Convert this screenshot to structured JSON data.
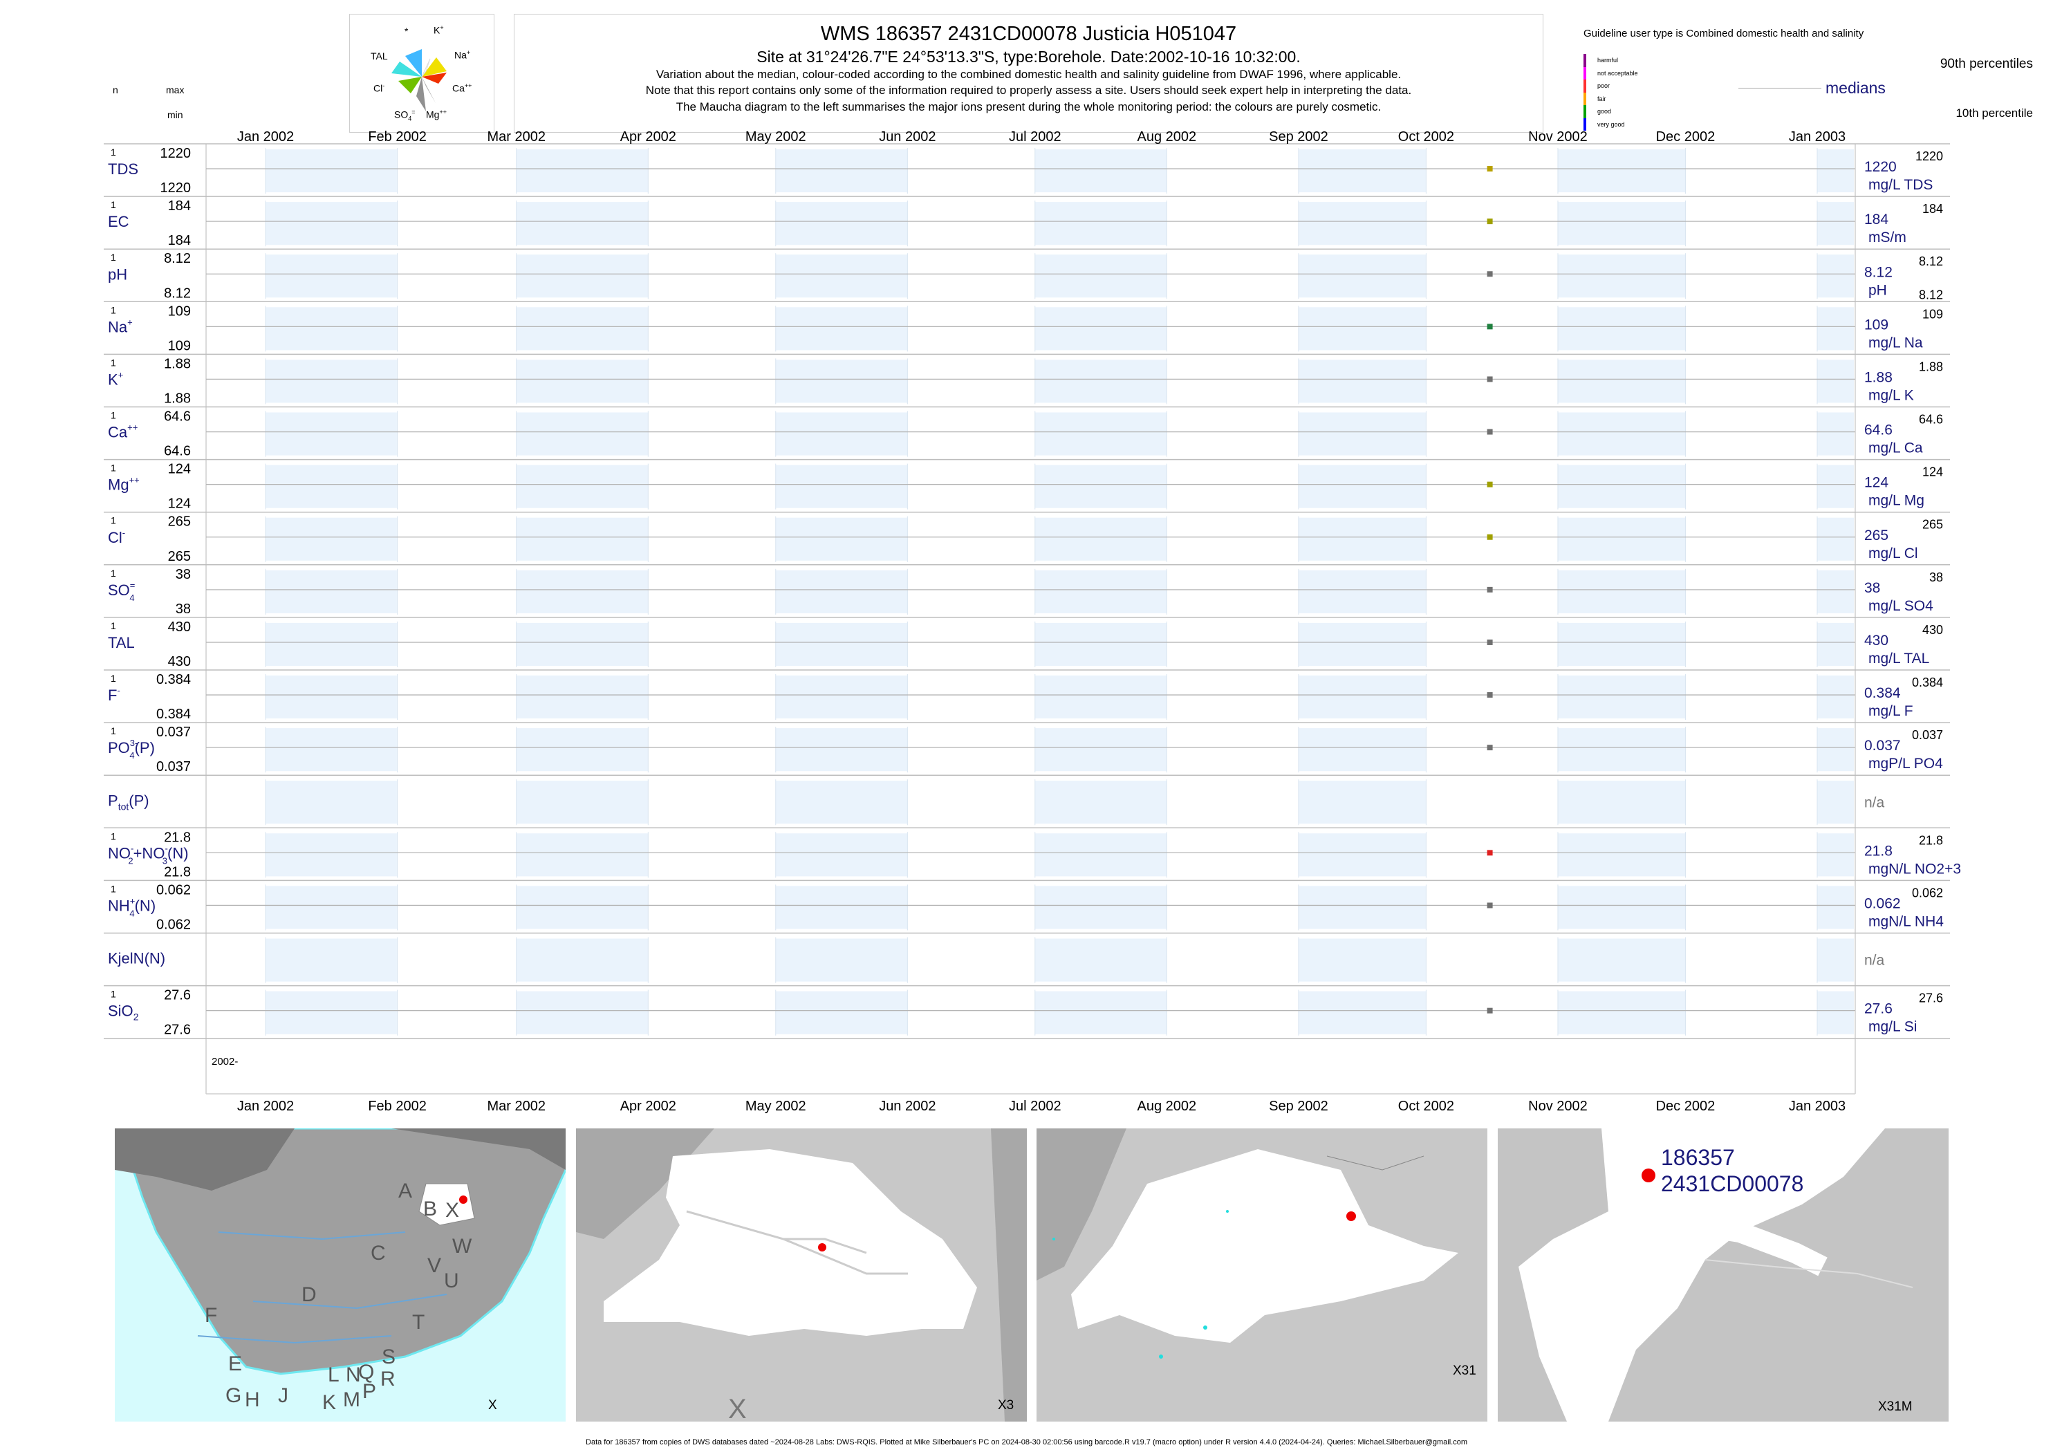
{
  "header": {
    "title": "WMS 186357 2431CD00078 Justicia H051047",
    "subtitle": "Site at 31°24'26.7\"E 24°53'13.3\"S, type:Borehole. Date:2002-10-16 10:32:00.",
    "line1": "Variation about the median,  colour-coded according to the combined domestic health and salinity guideline from DWAF 1996, where applicable.",
    "line2": "Note that this report contains only some of the information required to properly assess a site. Users should seek expert help in interpreting the data.",
    "line3": "The Maucha diagram to the left summarises the major ions present during the whole monitoring period: the colours are purely cosmetic."
  },
  "left_header": {
    "n": "n",
    "max": "max",
    "min": "min"
  },
  "maucha": {
    "labels": {
      "star": "*",
      "k": "K",
      "k_sup": "+",
      "na": "Na",
      "na_sup": "+",
      "tal": "TAL",
      "cl": "Cl",
      "cl_sup": "-",
      "ca": "Ca",
      "ca_sup": "++",
      "so4": "SO",
      "so4_sub": "4",
      "so4_sup": "=",
      "mg": "Mg",
      "mg_sup": "++"
    }
  },
  "legend": {
    "guideline_text": "Guideline user type is Combined domestic health and salinity",
    "classes": [
      {
        "label": "harmful",
        "color": "#8b008b"
      },
      {
        "label": "not acceptable",
        "color": "#ff00ff"
      },
      {
        "label": "poor",
        "color": "#ff3030"
      },
      {
        "label": "fair",
        "color": "#ffa500"
      },
      {
        "label": "good",
        "color": "#00a000"
      },
      {
        "label": "very good",
        "color": "#0000ff"
      }
    ],
    "p90": "90th percentiles",
    "medians": "medians",
    "p10": "10th percentile"
  },
  "chart_data": {
    "type": "scatter",
    "x_axis": {
      "range": [
        "2002-01-01",
        "2003-01-01"
      ],
      "tick_labels": [
        "Jan 2002",
        "Feb 2002",
        "Mar 2002",
        "Apr 2002",
        "May 2002",
        "Jun 2002",
        "Jul 2002",
        "Aug 2002",
        "Sep 2002",
        "Oct 2002",
        "Nov 2002",
        "Dec 2002",
        "Jan 2003"
      ],
      "bottom_label": "2002-"
    },
    "sample_date": "2002-10-16",
    "panels": [
      {
        "id": "tds",
        "label": "TDS",
        "n": "1",
        "max": "1220",
        "min": "1220",
        "median": "1220",
        "p90": "1220",
        "p10": "",
        "unit": "mg/L TDS",
        "value": 1220,
        "color": "#b8a000"
      },
      {
        "id": "ec",
        "label": "EC",
        "n": "1",
        "max": "184",
        "min": "184",
        "median": "184",
        "p90": "184",
        "p10": "",
        "unit": "mS/m",
        "value": 184,
        "color": "#a0a000"
      },
      {
        "id": "ph",
        "label": "pH",
        "n": "1",
        "max": "8.12",
        "min": "8.12",
        "median": "8.12",
        "p90": "8.12",
        "p10": "8.12",
        "unit": "pH",
        "value": 8.12,
        "color": "#707070"
      },
      {
        "id": "na",
        "label": "Na",
        "sup": "+",
        "n": "1",
        "max": "109",
        "min": "109",
        "median": "109",
        "p90": "109",
        "p10": "",
        "unit": "mg/L Na",
        "value": 109,
        "color": "#208040"
      },
      {
        "id": "k",
        "label": "K",
        "sup": "+",
        "n": "1",
        "max": "1.88",
        "min": "1.88",
        "median": "1.88",
        "p90": "1.88",
        "p10": "",
        "unit": "mg/L K",
        "value": 1.88,
        "color": "#707070"
      },
      {
        "id": "ca",
        "label": "Ca",
        "sup": "++",
        "n": "1",
        "max": "64.6",
        "min": "64.6",
        "median": "64.6",
        "p90": "64.6",
        "p10": "",
        "unit": "mg/L Ca",
        "value": 64.6,
        "color": "#707070"
      },
      {
        "id": "mg",
        "label": "Mg",
        "sup": "++",
        "n": "1",
        "max": "124",
        "min": "124",
        "median": "124",
        "p90": "124",
        "p10": "",
        "unit": "mg/L Mg",
        "value": 124,
        "color": "#a0a000"
      },
      {
        "id": "cl",
        "label": "Cl",
        "sup": "-",
        "n": "1",
        "max": "265",
        "min": "265",
        "median": "265",
        "p90": "265",
        "p10": "",
        "unit": "mg/L Cl",
        "value": 265,
        "color": "#a0a000"
      },
      {
        "id": "so4",
        "label": "SO",
        "sub": "4",
        "sup": "=",
        "n": "1",
        "max": "38",
        "min": "38",
        "median": "38",
        "p90": "38",
        "p10": "",
        "unit": "mg/L SO4",
        "value": 38,
        "color": "#707070"
      },
      {
        "id": "tal",
        "label": "TAL",
        "n": "1",
        "max": "430",
        "min": "430",
        "median": "430",
        "p90": "430",
        "p10": "",
        "unit": "mg/L TAL",
        "value": 430,
        "color": "#707070"
      },
      {
        "id": "f",
        "label": "F",
        "sup": "-",
        "n": "1",
        "max": "0.384",
        "min": "0.384",
        "median": "0.384",
        "p90": "0.384",
        "p10": "",
        "unit": "mg/L F",
        "value": 0.384,
        "color": "#707070"
      },
      {
        "id": "po4",
        "label": "PO",
        "sub": "4",
        "sup": "3-",
        "suffix": "(P)",
        "n": "1",
        "max": "0.037",
        "min": "0.037",
        "median": "0.037",
        "p90": "0.037",
        "p10": "",
        "unit": "mgP/L PO4",
        "value": 0.037,
        "color": "#707070"
      },
      {
        "id": "ptot",
        "label": "P",
        "sub": "tot",
        "suffix": "(P)",
        "n": "",
        "max": "",
        "min": "",
        "median": "n/a",
        "p90": "",
        "p10": "",
        "unit": "",
        "value": null,
        "color": "#707070"
      },
      {
        "id": "no23",
        "label": "NO",
        "sub": "2",
        "suffix": "+NO",
        "sub2": "3",
        "suffix2": "(N)",
        "sup": "-",
        "sup2": "-",
        "n": "1",
        "max": "21.8",
        "min": "21.8",
        "median": "21.8",
        "p90": "21.8",
        "p10": "",
        "unit": "mgN/L NO2+3",
        "value": 21.8,
        "color": "#e02020"
      },
      {
        "id": "nh4",
        "label": "NH",
        "sub": "4",
        "sup": "+",
        "suffix": "(N)",
        "n": "1",
        "max": "0.062",
        "min": "0.062",
        "median": "0.062",
        "p90": "0.062",
        "p10": "",
        "unit": "mgN/L NH4",
        "value": 0.062,
        "color": "#707070"
      },
      {
        "id": "kjel",
        "label": "KjelN(N)",
        "n": "",
        "max": "",
        "min": "",
        "median": "n/a",
        "p90": "",
        "p10": "",
        "unit": "",
        "value": null,
        "color": "#707070"
      },
      {
        "id": "sio2",
        "label": "SiO",
        "sub": "2",
        "n": "1",
        "max": "27.6",
        "min": "27.6",
        "median": "27.6",
        "p90": "27.6",
        "p10": "",
        "unit": "mg/L Si",
        "value": 27.6,
        "color": "#707070"
      }
    ]
  },
  "maps": {
    "map1": {
      "label": "X",
      "regions": [
        "A",
        "B",
        "X",
        "C",
        "W",
        "D",
        "V",
        "U",
        "F",
        "T",
        "E",
        "S",
        "L",
        "N",
        "Q",
        "R",
        "G",
        "H",
        "J",
        "K",
        "M",
        "P"
      ]
    },
    "map2": {
      "label": "X3",
      "big_letter": "X"
    },
    "map3": {
      "label": "X31"
    },
    "map4": {
      "label": "X31M",
      "site_id": "186357",
      "site_code": "2431CD00078"
    }
  },
  "footer": "Data for 186357 from copies of DWS databases dated ~2024-08-28 Labs: DWS-RQIS. Plotted at Mike Silberbauer's PC on 2024-08-30 02:00:56 using barcode.R v19.7 (macro option) under R version 4.4.0 (2024-04-24). Queries: Michael.Silberbauer@gmail.com"
}
